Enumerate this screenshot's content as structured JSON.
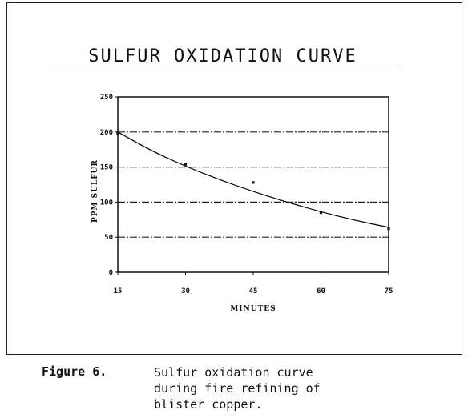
{
  "chart_data": {
    "type": "scatter",
    "title": "SULFUR OXIDATION CURVE",
    "xlabel": "MINUTES",
    "ylabel": "PPM SULFUR",
    "xlim": [
      15,
      75
    ],
    "ylim": [
      0,
      250
    ],
    "x_ticks": [
      15,
      30,
      45,
      60,
      75
    ],
    "y_ticks": [
      0,
      50,
      100,
      150,
      200,
      250
    ],
    "grid": "horizontal-dashed",
    "series": [
      {
        "points": [
          {
            "x": 15,
            "y": 198
          },
          {
            "x": 30,
            "y": 154
          },
          {
            "x": 45,
            "y": 128
          },
          {
            "x": 60,
            "y": 85
          },
          {
            "x": 75,
            "y": 62
          }
        ]
      }
    ],
    "trendline": {
      "x": [
        15,
        22.5,
        30,
        37.5,
        45,
        52.5,
        60,
        67.5,
        75
      ],
      "y": [
        200,
        173,
        151,
        132,
        115,
        100,
        86,
        74,
        64
      ]
    }
  },
  "caption": {
    "label": "Figure 6.",
    "text": "Sulfur oxidation curve\nduring fire refining of\nblister copper."
  }
}
